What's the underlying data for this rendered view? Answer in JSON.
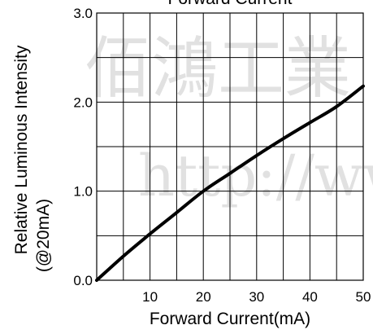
{
  "chart_data": {
    "type": "line",
    "title": "Forward Current",
    "xlabel": "Forward Current(mA)",
    "ylabel_line1": "Relative Luminous Intensity",
    "ylabel_line2": "(@20mA)",
    "xlim": [
      0,
      50
    ],
    "ylim": [
      0,
      3.0
    ],
    "x_ticks": [
      10,
      20,
      30,
      40,
      50
    ],
    "x_tick_labels": [
      "10",
      "20",
      "30",
      "40",
      "50"
    ],
    "y_ticks": [
      0,
      1.0,
      2.0,
      3.0
    ],
    "y_tick_labels": [
      "0.0",
      "1.0",
      "2.0",
      "3.0"
    ],
    "grid": true,
    "series": [
      {
        "x": [
          0,
          5,
          10,
          15,
          20,
          25,
          30,
          35,
          40,
          45,
          50
        ],
        "y": [
          0,
          0.27,
          0.52,
          0.76,
          1.0,
          1.2,
          1.4,
          1.59,
          1.77,
          1.95,
          2.18
        ]
      }
    ],
    "colors": {
      "line": "#000000",
      "grid": "#000000",
      "watermark": "#c9c9c9"
    }
  },
  "watermark": {
    "line1": "佰鴻工業",
    "line2": "http://ww"
  }
}
